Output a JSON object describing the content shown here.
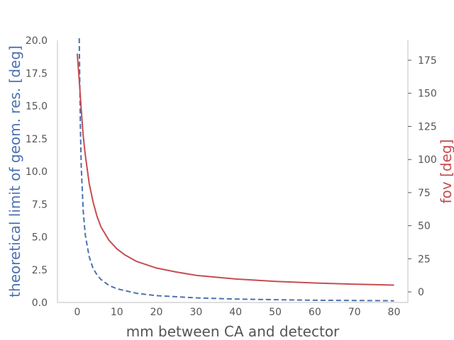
{
  "chart_data": {
    "type": "line",
    "title": "",
    "xlabel": "mm between CA and detector",
    "ylabel": "theoretical limit of geom. res. [deg]",
    "ylabel_right": "fov [deg]",
    "xlim": [
      -5,
      83.5
    ],
    "ylim": [
      0,
      20
    ],
    "ylim_right": [
      -8,
      190
    ],
    "x_ticks": [
      0,
      10,
      20,
      30,
      40,
      50,
      60,
      70,
      80
    ],
    "y_ticks": [
      0.0,
      2.5,
      5.0,
      7.5,
      10.0,
      12.5,
      15.0,
      17.5,
      20.0
    ],
    "y_right_ticks": [
      0,
      25,
      50,
      75,
      100,
      125,
      150,
      175
    ],
    "grid": false,
    "colors": {
      "left_axis": "#4C72B0",
      "right_axis": "#C44E52",
      "tick_text": "#555555",
      "spine": "#cccccc"
    },
    "series": [
      {
        "axis": "left",
        "style": "dashed",
        "color": "#4C72B0",
        "x": [
          0.5,
          0.6,
          0.8,
          1,
          1.5,
          2,
          3,
          4,
          5,
          6,
          8,
          10,
          15,
          20,
          30,
          40,
          50,
          60,
          70,
          80
        ],
        "values": [
          20.9,
          17.4,
          13.2,
          10.4,
          7.0,
          5.2,
          3.5,
          2.6,
          2.1,
          1.75,
          1.3,
          1.05,
          0.7,
          0.52,
          0.35,
          0.26,
          0.21,
          0.17,
          0.15,
          0.13
        ]
      },
      {
        "axis": "right",
        "style": "solid",
        "color": "#C44E52",
        "x": [
          0,
          0.5,
          1,
          1.5,
          2,
          3,
          4,
          5,
          6,
          8,
          10,
          12,
          15,
          20,
          25,
          30,
          40,
          50,
          60,
          70,
          80
        ],
        "values": [
          180,
          160,
          138,
          118,
          104,
          82,
          68,
          57,
          49,
          39,
          32.5,
          28,
          23,
          18,
          15,
          12.5,
          9.7,
          7.9,
          6.7,
          5.8,
          5.1
        ]
      }
    ]
  }
}
